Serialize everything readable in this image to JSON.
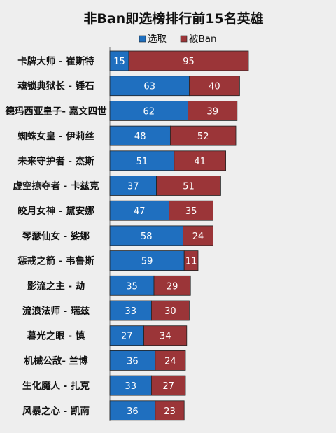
{
  "chart_data": {
    "type": "bar",
    "orientation": "horizontal",
    "stacked": true,
    "title": "非Ban即选榜排行前15名英雄",
    "legend_position": "top",
    "categories": [
      "卡牌大师 - 崔斯特",
      "魂锁典狱长 - 锤石",
      "德玛西亚皇子- 嘉文四世",
      "蜘蛛女皇 - 伊莉丝",
      "未来守护者 - 杰斯",
      "虚空掠夺者 - 卡兹克",
      "皎月女神 - 黛安娜",
      "琴瑟仙女 - 娑娜",
      "惩戒之箭 - 韦鲁斯",
      "影流之主 - 劫",
      "流浪法师 - 瑞兹",
      "暮光之眼 - 慎",
      "机械公敌- 兰博",
      "生化魔人 - 扎克",
      "风暴之心 - 凯南"
    ],
    "series": [
      {
        "name": "选取",
        "color": "#1f6fbf",
        "values": [
          15,
          63,
          62,
          48,
          51,
          37,
          47,
          58,
          59,
          35,
          33,
          27,
          36,
          33,
          36
        ]
      },
      {
        "name": "被Ban",
        "color": "#9b3538",
        "values": [
          95,
          40,
          39,
          52,
          41,
          51,
          35,
          24,
          11,
          29,
          30,
          34,
          24,
          27,
          23
        ]
      }
    ],
    "xlim": [
      0,
      110
    ],
    "grid": false,
    "data_labels": true
  }
}
